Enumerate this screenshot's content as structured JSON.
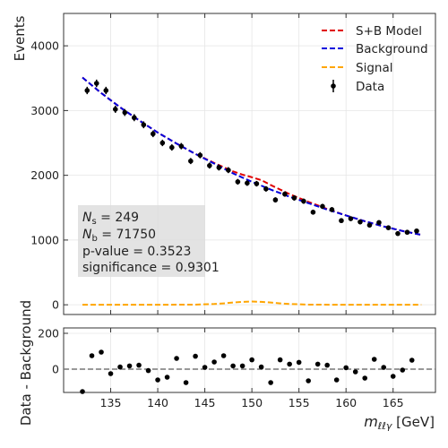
{
  "chart_data": [
    {
      "type": "scatter",
      "panel": "main",
      "ylabel": "Events",
      "xlim": [
        130,
        169.5
      ],
      "ylim": [
        -150,
        4500
      ],
      "yticks": [
        0,
        1000,
        2000,
        3000,
        4000
      ],
      "grid": true,
      "legend_position": "top-right",
      "series": [
        {
          "name": "S+B Model",
          "style": "dashed-line",
          "color": "#e00000",
          "x": [
            132,
            134,
            136,
            138,
            140,
            142,
            144,
            146,
            147,
            148,
            149,
            150,
            151,
            152,
            154,
            156,
            158,
            160,
            162,
            164,
            166,
            168
          ],
          "y": [
            3510,
            3270,
            3050,
            2850,
            2660,
            2490,
            2330,
            2190,
            2125,
            2060,
            2010,
            1970,
            1925,
            1850,
            1710,
            1590,
            1480,
            1380,
            1290,
            1210,
            1140,
            1080
          ]
        },
        {
          "name": "Background",
          "style": "dashed-line",
          "color": "#0000dd",
          "x": [
            132,
            134,
            136,
            138,
            140,
            142,
            144,
            146,
            148,
            150,
            152,
            154,
            156,
            158,
            160,
            162,
            164,
            166,
            168
          ],
          "y": [
            3510,
            3270,
            3050,
            2850,
            2660,
            2490,
            2330,
            2180,
            2030,
            1900,
            1780,
            1670,
            1570,
            1470,
            1380,
            1290,
            1210,
            1140,
            1080
          ]
        },
        {
          "name": "Signal",
          "style": "dashed-line",
          "color": "#ffa500",
          "x": [
            132,
            140,
            144,
            146,
            147,
            148,
            149,
            150,
            151,
            152,
            153,
            154,
            156,
            160,
            168
          ],
          "y": [
            0,
            0,
            3,
            12,
            22,
            35,
            45,
            50,
            45,
            35,
            22,
            12,
            3,
            0,
            0
          ]
        },
        {
          "name": "Data",
          "style": "points-with-errorbars",
          "color": "#000000",
          "x": [
            132.5,
            133.5,
            134.5,
            135.5,
            136.5,
            137.5,
            138.5,
            139.5,
            140.5,
            141.5,
            142.5,
            143.5,
            144.5,
            145.5,
            146.5,
            147.5,
            148.5,
            149.5,
            150.5,
            151.5,
            152.5,
            153.5,
            154.5,
            155.5,
            156.5,
            157.5,
            158.5,
            159.5,
            160.5,
            161.5,
            162.5,
            163.5,
            164.5,
            165.5,
            166.5,
            167.5
          ],
          "y": [
            3310,
            3420,
            3310,
            3020,
            2970,
            2890,
            2780,
            2640,
            2500,
            2430,
            2450,
            2220,
            2310,
            2150,
            2120,
            2080,
            1900,
            1880,
            1870,
            1790,
            1620,
            1710,
            1650,
            1600,
            1430,
            1520,
            1470,
            1300,
            1330,
            1280,
            1230,
            1270,
            1190,
            1100,
            1120,
            1140
          ],
          "yerr": [
            57,
            58,
            57,
            55,
            54,
            54,
            53,
            51,
            50,
            49,
            49,
            47,
            48,
            46,
            46,
            46,
            44,
            43,
            43,
            42,
            40,
            41,
            41,
            40,
            38,
            39,
            38,
            36,
            36,
            36,
            35,
            36,
            34,
            33,
            33,
            34
          ]
        }
      ],
      "annotation": {
        "ns_symbol": "N",
        "ns_sub": "s",
        "ns_value": " = 249",
        "nb_symbol": "N",
        "nb_sub": "b",
        "nb_value": " = 71750",
        "pvalue": "p-value = 0.3523",
        "significance": "significance = 0.9301"
      }
    },
    {
      "type": "scatter",
      "panel": "residual",
      "ylabel": "Data - Background",
      "xlabel_symbol": "m",
      "xlabel_sub": "ℓℓγ",
      "xlabel_unit": " [GeV]",
      "xlim": [
        130,
        169.5
      ],
      "ylim": [
        -130,
        230
      ],
      "yticks": [
        0,
        200
      ],
      "xticks": [
        135,
        140,
        145,
        150,
        155,
        160,
        165
      ],
      "reference_line": 0,
      "grid": true,
      "series": [
        {
          "name": "",
          "color": "#000000",
          "x": [
            132,
            133,
            134,
            135,
            136,
            137,
            138,
            139,
            140,
            141,
            142,
            143,
            144,
            145,
            146,
            147,
            148,
            149,
            150,
            151,
            152,
            153,
            154,
            155,
            156,
            157,
            158,
            159,
            160,
            161,
            162,
            163,
            164,
            165,
            166,
            167
          ],
          "y": [
            -125,
            75,
            95,
            -25,
            12,
            18,
            22,
            -8,
            -60,
            -45,
            60,
            -75,
            72,
            10,
            40,
            75,
            18,
            18,
            52,
            12,
            -75,
            52,
            28,
            38,
            -65,
            28,
            22,
            -60,
            8,
            -15,
            -50,
            55,
            10,
            -40,
            -5,
            50
          ]
        }
      ]
    }
  ]
}
